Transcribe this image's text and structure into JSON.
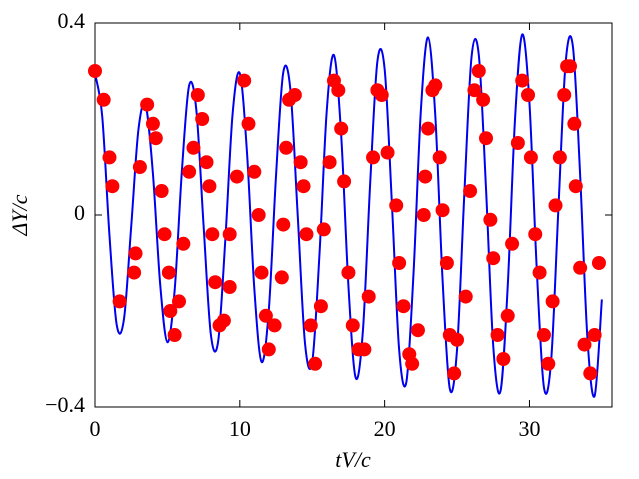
{
  "chart_data": {
    "type": "line",
    "xlabel": "tV/c",
    "ylabel": "ΔY/c",
    "xlim": [
      0,
      35.7
    ],
    "ylim": [
      -0.4,
      0.4
    ],
    "xticks": [
      0,
      10,
      20,
      30
    ],
    "yticks": [
      {
        "value": -0.4,
        "label": "−0.4"
      },
      0,
      0.4
    ],
    "series": [
      {
        "type": "line",
        "color": "#0000ee",
        "x": [
          0,
          0.5,
          1,
          1.5,
          2,
          2.5,
          3,
          3.5,
          4,
          4.5,
          5,
          5.5,
          6,
          6.5,
          7,
          7.5,
          8,
          8.5,
          9,
          9.5,
          10,
          10.5,
          11,
          11.5,
          12,
          12.5,
          13,
          13.5,
          14,
          14.5,
          15,
          15.5,
          16,
          16.5,
          17,
          17.5,
          18,
          18.5,
          19,
          19.5,
          20,
          20.5,
          21,
          21.5,
          22,
          22.5,
          23,
          23.5,
          24,
          24.5,
          25,
          25.5,
          26,
          26.5,
          27,
          27.5,
          28,
          28.5,
          29,
          29.5,
          30,
          30.5,
          31,
          31.5,
          32,
          32.5,
          33,
          33.5,
          34,
          34.5,
          35
        ],
        "values": [
          0.295,
          0.205,
          -0.043,
          -0.229,
          -0.217,
          -0.024,
          0.178,
          0.228,
          0.086,
          -0.144,
          -0.265,
          -0.157,
          0.092,
          0.27,
          0.218,
          -0.023,
          -0.249,
          -0.264,
          -0.051,
          0.21,
          0.295,
          0.128,
          -0.153,
          -0.306,
          -0.199,
          0.082,
          0.297,
          0.259,
          -0.002,
          -0.267,
          -0.306,
          -0.082,
          0.216,
          0.333,
          0.166,
          -0.148,
          -0.339,
          -0.241,
          0.065,
          0.32,
          0.304,
          0.025,
          -0.28,
          -0.348,
          -0.118,
          0.217,
          0.37,
          0.206,
          -0.135,
          -0.362,
          -0.28,
          0.042,
          0.329,
          0.334,
          0.055,
          -0.273,
          -0.367,
          -0.148,
          0.198,
          0.376,
          0.233,
          -0.11,
          -0.359,
          -0.302,
          0.014,
          0.318,
          0.351,
          0.083,
          -0.255,
          -0.377,
          -0.176
        ]
      },
      {
        "type": "scatter",
        "color": "#ff0000",
        "x": [
          0,
          0.6,
          1.0,
          1.2,
          1.7,
          2.8,
          2.7,
          3.1,
          3.6,
          4.0,
          4.2,
          4.6,
          4.8,
          5.1,
          5.2,
          5.5,
          5.8,
          6.1,
          6.5,
          6.8,
          7.1,
          7.4,
          7.7,
          7.9,
          8.1,
          8.3,
          8.6,
          8.9,
          9.3,
          9.3,
          9.8,
          10.3,
          10.6,
          11.0,
          11.3,
          11.5,
          11.8,
          12.0,
          12.4,
          12.9,
          13.0,
          13.2,
          13.4,
          13.8,
          14.2,
          14.4,
          14.6,
          14.9,
          15.2,
          15.6,
          15.8,
          16.2,
          16.5,
          16.8,
          17.0,
          17.2,
          17.5,
          17.8,
          18.2,
          18.6,
          18.9,
          19.2,
          19.5,
          19.8,
          20.2,
          20.8,
          21.0,
          21.3,
          21.7,
          21.9,
          22.3,
          22.7,
          22.8,
          23.0,
          23.3,
          23.5,
          23.8,
          24.0,
          24.3,
          24.5,
          24.8,
          25.0,
          25.6,
          25.9,
          26.2,
          26.5,
          26.8,
          27.0,
          27.3,
          27.5,
          27.8,
          28.2,
          28.5,
          28.8,
          29.2,
          29.5,
          29.9,
          30.1,
          30.4,
          30.7,
          31.0,
          31.3,
          31.6,
          31.8,
          32.1,
          32.4,
          32.6,
          32.8,
          33.1,
          33.2,
          33.5,
          33.8,
          34.2,
          34.5,
          34.8
        ],
        "values": [
          0.3,
          0.24,
          0.12,
          0.06,
          -0.18,
          -0.08,
          -0.12,
          0.1,
          0.23,
          0.19,
          0.16,
          0.05,
          -0.04,
          -0.12,
          -0.2,
          -0.25,
          -0.18,
          -0.06,
          0.09,
          0.14,
          0.25,
          0.2,
          0.11,
          0.06,
          -0.04,
          -0.14,
          -0.23,
          -0.22,
          -0.15,
          -0.04,
          0.08,
          0.28,
          0.19,
          0.09,
          0.0,
          -0.12,
          -0.21,
          -0.28,
          -0.23,
          -0.13,
          -0.02,
          0.14,
          0.24,
          0.25,
          0.11,
          0.06,
          -0.04,
          -0.23,
          -0.31,
          -0.19,
          -0.03,
          0.11,
          0.28,
          0.26,
          0.18,
          0.07,
          -0.12,
          -0.23,
          -0.28,
          -0.28,
          -0.17,
          0.12,
          0.26,
          0.25,
          0.13,
          0.02,
          -0.1,
          -0.19,
          -0.29,
          -0.31,
          -0.24,
          0.0,
          0.08,
          0.18,
          0.26,
          0.27,
          0.12,
          0.01,
          -0.1,
          -0.25,
          -0.33,
          -0.26,
          -0.17,
          0.05,
          0.26,
          0.3,
          0.24,
          0.16,
          -0.01,
          -0.09,
          -0.25,
          -0.3,
          -0.21,
          -0.06,
          0.15,
          0.28,
          0.25,
          0.12,
          -0.04,
          -0.12,
          -0.25,
          -0.31,
          -0.18,
          0.02,
          0.12,
          0.25,
          0.31,
          0.31,
          0.19,
          0.06,
          -0.11,
          -0.27,
          -0.33,
          -0.25,
          -0.1
        ]
      }
    ]
  }
}
